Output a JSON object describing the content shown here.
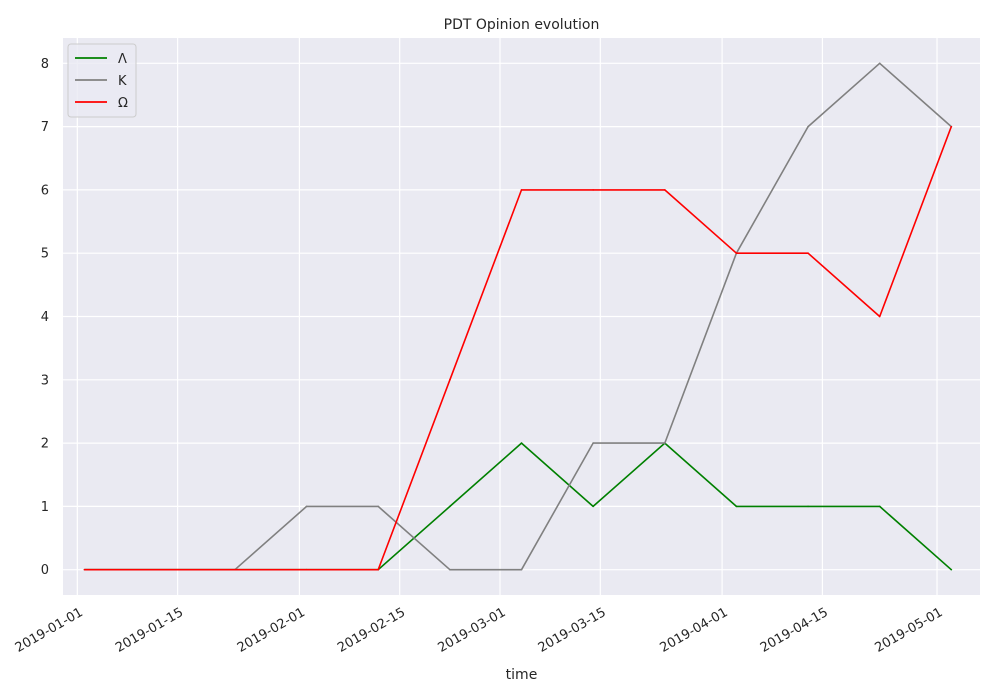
{
  "chart_data": {
    "type": "line",
    "title": "PDT Opinion evolution",
    "xlabel": "time",
    "ylabel": "",
    "x_type": "date",
    "xlim": [
      "2018-12-30",
      "2019-05-07"
    ],
    "ylim": [
      -0.4,
      8.4
    ],
    "x_ticks": [
      "2019-01-01",
      "2019-01-15",
      "2019-02-01",
      "2019-02-15",
      "2019-03-01",
      "2019-03-15",
      "2019-04-01",
      "2019-04-15",
      "2019-05-01"
    ],
    "y_ticks": [
      0,
      1,
      2,
      3,
      4,
      5,
      6,
      7,
      8
    ],
    "grid": true,
    "legend_position": "upper-left",
    "x": [
      "2019-01-02",
      "2019-01-23",
      "2019-02-02",
      "2019-02-12",
      "2019-02-22",
      "2019-03-04",
      "2019-03-14",
      "2019-03-24",
      "2019-04-03",
      "2019-04-13",
      "2019-04-23",
      "2019-05-03"
    ],
    "series": [
      {
        "name": "Λ",
        "color": "#008000",
        "values": [
          0,
          0,
          0,
          0,
          1,
          2,
          1,
          2,
          1,
          1,
          1,
          0
        ]
      },
      {
        "name": "Κ",
        "color": "#808080",
        "values": [
          0,
          0,
          1,
          1,
          0,
          0,
          2,
          2,
          5,
          7,
          8,
          7
        ]
      },
      {
        "name": "Ω",
        "color": "#ff0000",
        "values": [
          0,
          0,
          0,
          0,
          3,
          6,
          6,
          6,
          5,
          5,
          4,
          7
        ]
      }
    ]
  }
}
